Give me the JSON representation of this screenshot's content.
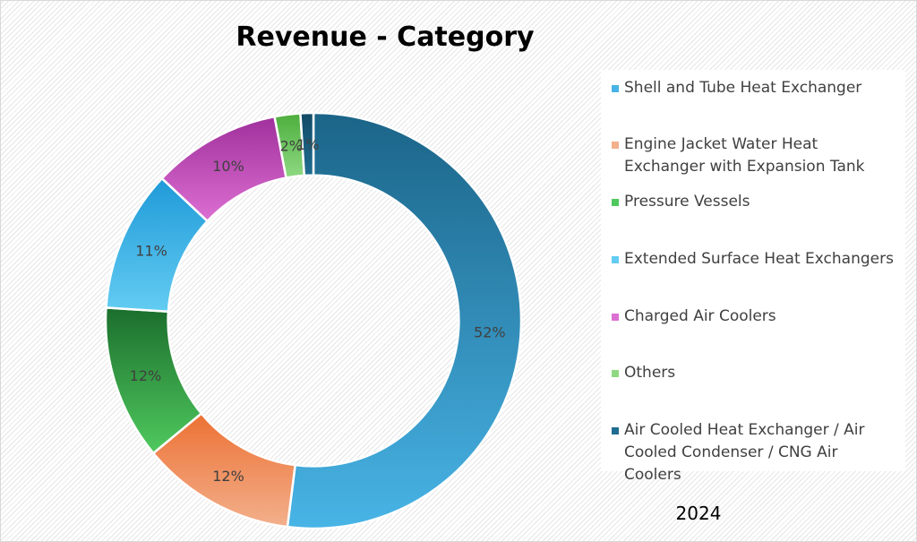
{
  "chart_data": {
    "type": "pie",
    "title": "Revenue - Category",
    "categories": [
      "Shell and Tube Heat Exchanger",
      "Engine Jacket Water Heat Exchanger with Expansion Tank",
      "Pressure Vessels",
      "Extended Surface Heat Exchangers",
      "Charged Air Coolers",
      "Others",
      "Air Cooled Heat Exchanger / Air Cooled Condenser / CNG Air Coolers"
    ],
    "values": [
      52,
      12,
      12,
      11,
      10,
      2,
      1
    ],
    "labels": [
      "52%",
      "12%",
      "12%",
      "11%",
      "10%",
      "2%",
      "1%"
    ],
    "colors": [
      [
        "#1b6488",
        "#48b4e6"
      ],
      [
        "#ec7134",
        "#f3b08c"
      ],
      [
        "#1b6e2c",
        "#4fc95e"
      ],
      [
        "#1f9ad8",
        "#63ccf2"
      ],
      [
        "#a0309c",
        "#dc6fd2"
      ],
      [
        "#4cae3c",
        "#8fd983"
      ],
      [
        "#124a66",
        "#1f6d91"
      ]
    ],
    "hole": 0.7,
    "legend_position": "right",
    "footer": "2024"
  }
}
